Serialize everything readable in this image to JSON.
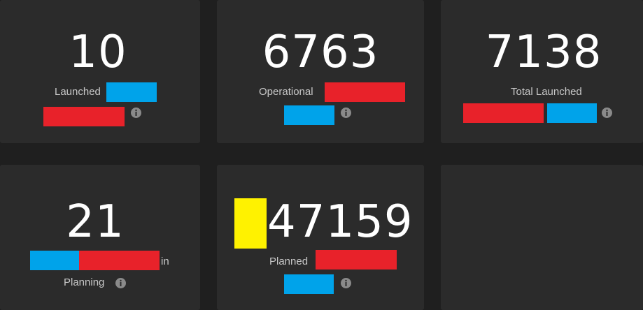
{
  "cards": [
    {
      "value": 10,
      "label": "Launched"
    },
    {
      "value": 6763,
      "label": "Operational"
    },
    {
      "value": 7138,
      "label": "Total Launched"
    },
    {
      "value": 21,
      "label_suffix": "in",
      "label": "Planning"
    },
    {
      "value": 47159,
      "label": "Planned"
    }
  ]
}
